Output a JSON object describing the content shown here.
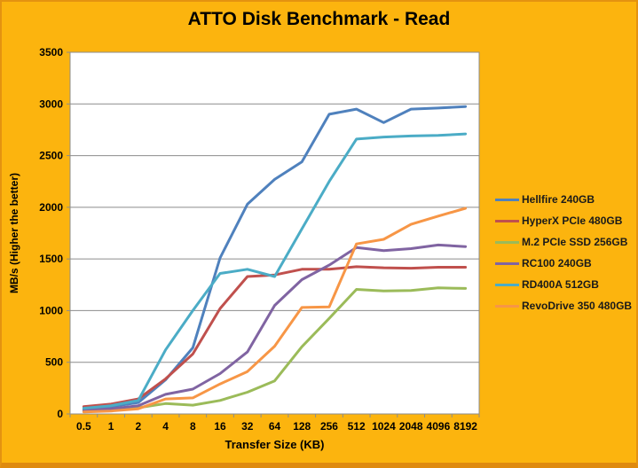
{
  "window": {
    "background_color": "#FCB40E",
    "border_color": "#E49310"
  },
  "chart_data": {
    "type": "line",
    "title": "ATTO Disk Benchmark - Read",
    "xlabel": "Transfer Size (KB)",
    "ylabel": "MB/s (Higher the better)",
    "categories": [
      "0.5",
      "1",
      "2",
      "4",
      "8",
      "16",
      "32",
      "64",
      "128",
      "256",
      "512",
      "1024",
      "2048",
      "4096",
      "8192"
    ],
    "ylim": [
      0,
      3500
    ],
    "ytick_step": 500,
    "ytick_labels": [
      "0",
      "500",
      "1000",
      "1500",
      "2000",
      "2500",
      "3000",
      "3500"
    ],
    "grid": true,
    "legend_position": "right",
    "plot_background": "#FFFFFF",
    "gridline_color": "#8C8C8C",
    "series": [
      {
        "name": "Hellfire 240GB",
        "color": "#4F81BD",
        "values": [
          45,
          70,
          110,
          330,
          640,
          1510,
          2030,
          2270,
          2440,
          2900,
          2950,
          2820,
          2950,
          2960,
          2975
        ]
      },
      {
        "name": "HyperX PCIe 480GB",
        "color": "#C0504D",
        "values": [
          70,
          95,
          145,
          340,
          580,
          1020,
          1330,
          1345,
          1400,
          1400,
          1425,
          1415,
          1410,
          1420,
          1420
        ]
      },
      {
        "name": "M.2 PCIe SSD 256GB",
        "color": "#9BBB59",
        "values": [
          25,
          35,
          60,
          100,
          85,
          130,
          210,
          320,
          650,
          925,
          1205,
          1190,
          1195,
          1220,
          1215
        ]
      },
      {
        "name": "RC100 240GB",
        "color": "#8064A2",
        "values": [
          35,
          50,
          80,
          190,
          240,
          390,
          600,
          1050,
          1300,
          1440,
          1610,
          1580,
          1600,
          1635,
          1620
        ]
      },
      {
        "name": "RD400A 512GB",
        "color": "#4BACC6",
        "values": [
          55,
          80,
          130,
          620,
          1000,
          1360,
          1400,
          1330,
          1790,
          2250,
          2660,
          2680,
          2690,
          2695,
          2710
        ]
      },
      {
        "name": "RevoDrive 350 480GB",
        "color": "#F79646",
        "values": [
          20,
          28,
          50,
          145,
          155,
          290,
          410,
          655,
          1030,
          1035,
          1645,
          1690,
          1835,
          1915,
          1990
        ]
      }
    ]
  }
}
